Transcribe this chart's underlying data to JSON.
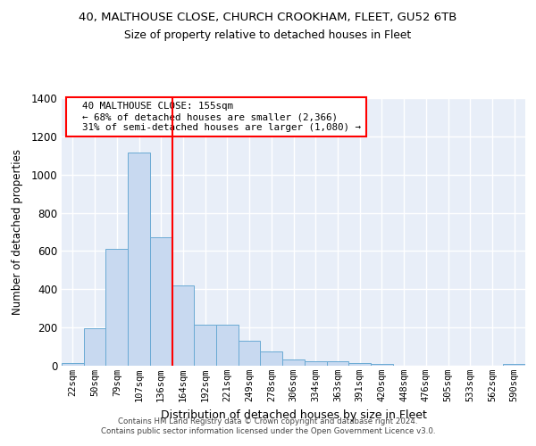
{
  "title1": "40, MALTHOUSE CLOSE, CHURCH CROOKHAM, FLEET, GU52 6TB",
  "title2": "Size of property relative to detached houses in Fleet",
  "xlabel": "Distribution of detached houses by size in Fleet",
  "ylabel": "Number of detached properties",
  "bar_color": "#c8d9f0",
  "bar_edge_color": "#6aaad4",
  "background_color": "#e8eef8",
  "grid_color": "#ffffff",
  "categories": [
    "22sqm",
    "50sqm",
    "79sqm",
    "107sqm",
    "136sqm",
    "164sqm",
    "192sqm",
    "221sqm",
    "249sqm",
    "278sqm",
    "306sqm",
    "334sqm",
    "363sqm",
    "391sqm",
    "420sqm",
    "448sqm",
    "476sqm",
    "505sqm",
    "533sqm",
    "562sqm",
    "590sqm"
  ],
  "values": [
    15,
    195,
    610,
    1115,
    670,
    420,
    215,
    215,
    130,
    75,
    35,
    25,
    25,
    15,
    10,
    0,
    0,
    0,
    0,
    0,
    10
  ],
  "red_line_x": 4.5,
  "annotation_text": "  40 MALTHOUSE CLOSE: 155sqm\n  ← 68% of detached houses are smaller (2,366)\n  31% of semi-detached houses are larger (1,080) →",
  "annotation_box_color": "white",
  "annotation_box_edge": "red",
  "ylim": [
    0,
    1400
  ],
  "yticks": [
    0,
    200,
    400,
    600,
    800,
    1000,
    1200,
    1400
  ],
  "footer1": "Contains HM Land Registry data © Crown copyright and database right 2024.",
  "footer2": "Contains public sector information licensed under the Open Government Licence v3.0."
}
